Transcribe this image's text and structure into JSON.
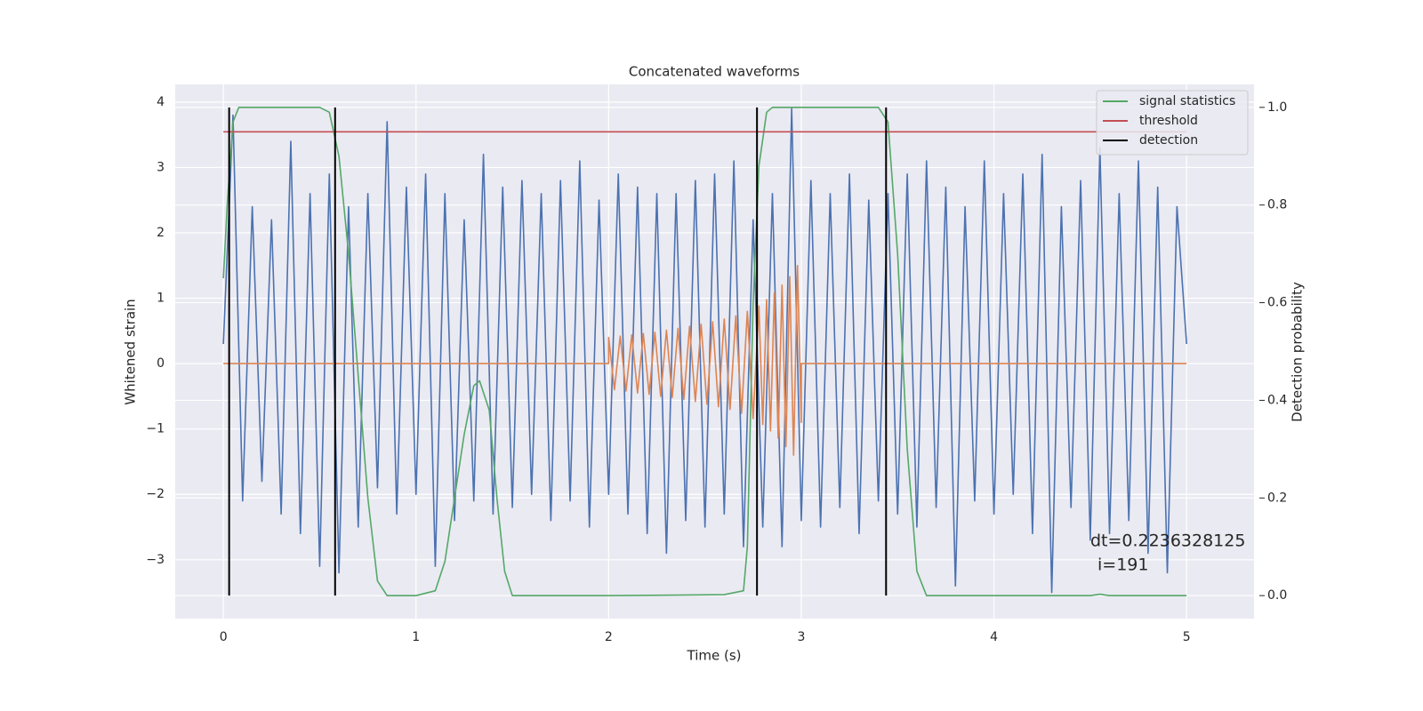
{
  "chart_data": {
    "type": "line",
    "title": "Concatenated waveforms",
    "xlabel": "Time (s)",
    "ylabel": "Whitened strain",
    "y2label": "Detection probability",
    "xlim": [
      -0.25,
      5.35
    ],
    "ylim": [
      -3.9,
      4.27
    ],
    "y2lim": [
      -0.047,
      1.047
    ],
    "xticks": [
      0,
      1,
      2,
      3,
      4,
      5
    ],
    "yticks": [
      {
        "value": -3,
        "label": "−3"
      },
      {
        "value": -2,
        "label": "−2"
      },
      {
        "value": -1,
        "label": "−1"
      },
      0,
      1,
      2,
      3,
      4
    ],
    "y2ticks": [
      {
        "value": 0,
        "label": "0.0"
      },
      0.2,
      0.4,
      0.6,
      0.8,
      {
        "value": 1,
        "label": "1.0"
      }
    ],
    "grid": true,
    "legend": "upper right",
    "annotation_lines": [
      "dt=0.2236328125",
      "i=191"
    ],
    "series": [
      {
        "color": "#4c72b0",
        "axis": "y",
        "x": [
          0,
          0.05,
          0.1,
          0.15,
          0.2,
          0.25,
          0.3,
          0.35,
          0.4,
          0.45,
          0.5,
          0.55,
          0.6,
          0.65,
          0.7,
          0.75,
          0.8,
          0.85,
          0.9,
          0.95,
          1.0,
          1.05,
          1.1,
          1.15,
          1.2,
          1.25,
          1.3,
          1.35,
          1.4,
          1.45,
          1.5,
          1.55,
          1.6,
          1.65,
          1.7,
          1.75,
          1.8,
          1.85,
          1.9,
          1.95,
          2.0,
          2.05,
          2.1,
          2.15,
          2.2,
          2.25,
          2.3,
          2.35,
          2.4,
          2.45,
          2.5,
          2.55,
          2.6,
          2.65,
          2.7,
          2.75,
          2.8,
          2.85,
          2.9,
          2.95,
          3.0,
          3.05,
          3.1,
          3.15,
          3.2,
          3.25,
          3.3,
          3.35,
          3.4,
          3.45,
          3.5,
          3.55,
          3.6,
          3.65,
          3.7,
          3.75,
          3.8,
          3.85,
          3.9,
          3.95,
          4.0,
          4.05,
          4.1,
          4.15,
          4.2,
          4.25,
          4.3,
          4.35,
          4.4,
          4.45,
          4.5,
          4.55,
          4.6,
          4.65,
          4.7,
          4.75,
          4.8,
          4.85,
          4.9,
          4.95,
          5.0
        ],
        "values": [
          0.3,
          3.8,
          -2.1,
          2.4,
          -1.8,
          2.2,
          -2.3,
          3.4,
          -2.6,
          2.6,
          -3.1,
          2.9,
          -3.2,
          2.4,
          -2.5,
          2.6,
          -1.9,
          3.7,
          -2.3,
          2.7,
          -2.0,
          2.9,
          -3.1,
          2.6,
          -2.4,
          2.2,
          -2.1,
          3.2,
          -2.3,
          2.7,
          -2.2,
          2.8,
          -2.0,
          2.6,
          -2.4,
          2.8,
          -2.1,
          3.1,
          -2.5,
          2.5,
          -2.0,
          2.9,
          -2.3,
          2.7,
          -2.6,
          2.6,
          -2.9,
          2.6,
          -2.4,
          2.8,
          -2.5,
          2.9,
          -2.3,
          3.1,
          -2.8,
          2.2,
          -2.5,
          2.6,
          -2.8,
          3.9,
          -2.4,
          2.8,
          -2.5,
          2.6,
          -2.2,
          2.9,
          -2.6,
          2.5,
          -2.1,
          2.6,
          -2.3,
          2.9,
          -2.5,
          3.1,
          -2.2,
          2.7,
          -3.4,
          2.4,
          -2.1,
          3.1,
          -2.3,
          2.6,
          -2.0,
          2.9,
          -2.6,
          3.2,
          -3.5,
          2.4,
          -2.2,
          2.8,
          -2.7,
          3.3,
          -2.6,
          2.6,
          -2.4,
          3.1,
          -2.9,
          2.7,
          -3.2,
          2.4,
          0.3
        ]
      },
      {
        "color": "#dd8452",
        "axis": "y",
        "x": [
          0,
          2.0,
          2.0,
          2.03,
          2.06,
          2.09,
          2.12,
          2.15,
          2.18,
          2.21,
          2.24,
          2.27,
          2.3,
          2.33,
          2.36,
          2.39,
          2.42,
          2.45,
          2.48,
          2.51,
          2.54,
          2.57,
          2.6,
          2.63,
          2.66,
          2.69,
          2.72,
          2.75,
          2.78,
          2.8,
          2.82,
          2.84,
          2.86,
          2.88,
          2.9,
          2.92,
          2.94,
          2.96,
          2.98,
          3.0,
          3.0,
          5.0
        ],
        "values": [
          0,
          0,
          0.4,
          -0.4,
          0.42,
          -0.42,
          0.44,
          -0.45,
          0.46,
          -0.47,
          0.48,
          -0.5,
          0.51,
          -0.52,
          0.54,
          -0.55,
          0.57,
          -0.58,
          0.6,
          -0.62,
          0.64,
          -0.66,
          0.68,
          -0.7,
          0.73,
          -0.76,
          0.8,
          -0.84,
          0.88,
          -0.93,
          0.98,
          -1.03,
          1.08,
          -1.14,
          1.2,
          -1.27,
          1.33,
          -1.4,
          1.5,
          -0.9,
          0,
          0
        ]
      },
      {
        "name": "signal statistics",
        "color": "#55a868",
        "axis": "y2",
        "x": [
          0,
          0.02,
          0.05,
          0.08,
          0.5,
          0.55,
          0.6,
          0.65,
          0.7,
          0.75,
          0.8,
          0.85,
          1.0,
          1.1,
          1.15,
          1.2,
          1.25,
          1.3,
          1.33,
          1.38,
          1.42,
          1.46,
          1.5,
          2.0,
          2.6,
          2.7,
          2.72,
          2.75,
          2.78,
          2.82,
          2.85,
          3.4,
          3.45,
          3.5,
          3.55,
          3.6,
          3.65,
          4.5,
          4.55,
          4.6,
          5.0
        ],
        "values": [
          0.65,
          0.8,
          0.97,
          1.0,
          1.0,
          0.99,
          0.9,
          0.7,
          0.45,
          0.2,
          0.03,
          0.0,
          0.0,
          0.01,
          0.07,
          0.2,
          0.33,
          0.43,
          0.44,
          0.38,
          0.2,
          0.05,
          0.0,
          0.0,
          0.002,
          0.01,
          0.1,
          0.6,
          0.88,
          0.99,
          1.0,
          1.0,
          0.97,
          0.7,
          0.3,
          0.05,
          0.0,
          0.0,
          0.003,
          0.0,
          0.0
        ]
      },
      {
        "name": "threshold",
        "color": "#c44e52",
        "axis": "y2",
        "x": [
          0,
          5
        ],
        "values": [
          0.95,
          0.95
        ]
      },
      {
        "name": "detection",
        "color": "#000000",
        "axis": "y2",
        "kind": "vline",
        "x": [
          0.03,
          0.58,
          2.77,
          3.44
        ],
        "values": [
          1,
          1,
          1,
          1
        ]
      }
    ]
  }
}
